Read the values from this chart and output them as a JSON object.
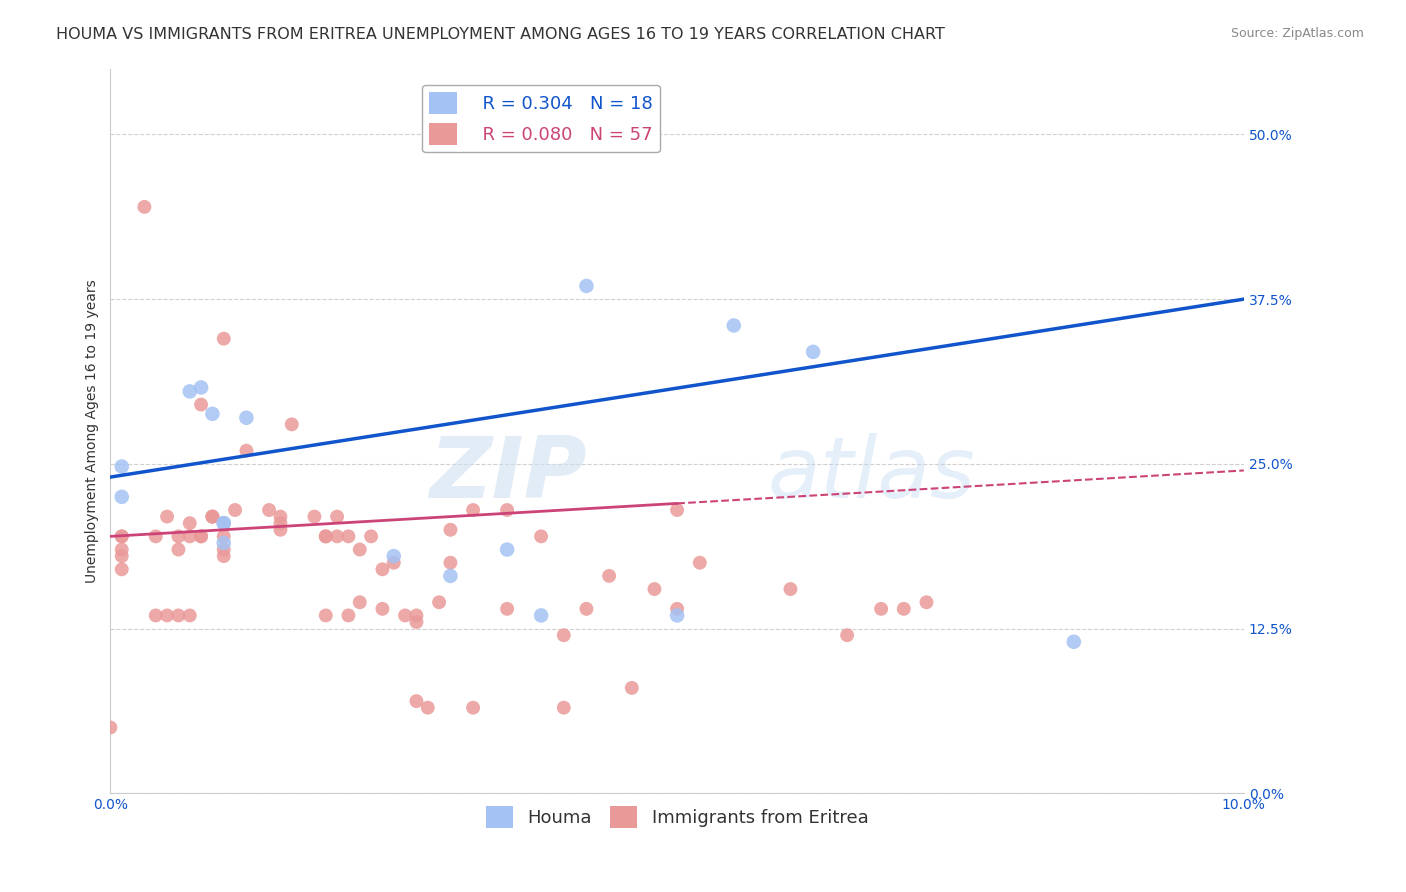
{
  "title": "HOUMA VS IMMIGRANTS FROM ERITREA UNEMPLOYMENT AMONG AGES 16 TO 19 YEARS CORRELATION CHART",
  "source": "Source: ZipAtlas.com",
  "ylabel": "Unemployment Among Ages 16 to 19 years",
  "xlim": [
    0.0,
    0.1
  ],
  "ylim": [
    0.0,
    0.55
  ],
  "ytick_labels": [
    "0.0%",
    "12.5%",
    "25.0%",
    "37.5%",
    "50.0%"
  ],
  "ytick_values": [
    0.0,
    0.125,
    0.25,
    0.375,
    0.5
  ],
  "xtick_values": [
    0.0,
    0.01,
    0.02,
    0.03,
    0.04,
    0.05,
    0.06,
    0.07,
    0.08,
    0.09,
    0.1
  ],
  "houma_R": 0.304,
  "houma_N": 18,
  "eritrea_R": 0.08,
  "eritrea_N": 57,
  "houma_color": "#a4c2f4",
  "eritrea_color": "#ea9999",
  "trend_houma_color": "#1155cc",
  "trend_eritrea_color": "#cc4477",
  "background_color": "#ffffff",
  "grid_color": "#d0d0d0",
  "houma_points_x": [
    0.001,
    0.001,
    0.007,
    0.008,
    0.009,
    0.01,
    0.01,
    0.01,
    0.012,
    0.025,
    0.03,
    0.035,
    0.038,
    0.042,
    0.05,
    0.055,
    0.062,
    0.085
  ],
  "houma_points_y": [
    0.248,
    0.225,
    0.305,
    0.308,
    0.288,
    0.205,
    0.205,
    0.19,
    0.285,
    0.18,
    0.165,
    0.185,
    0.135,
    0.385,
    0.135,
    0.355,
    0.335,
    0.115
  ],
  "eritrea_points_x": [
    0.001,
    0.001,
    0.001,
    0.001,
    0.001,
    0.004,
    0.005,
    0.006,
    0.006,
    0.007,
    0.007,
    0.008,
    0.008,
    0.009,
    0.009,
    0.009,
    0.01,
    0.01,
    0.01,
    0.01,
    0.011,
    0.012,
    0.014,
    0.015,
    0.015,
    0.016,
    0.018,
    0.019,
    0.019,
    0.02,
    0.02,
    0.021,
    0.022,
    0.022,
    0.023,
    0.024,
    0.025,
    0.026,
    0.027,
    0.027,
    0.029,
    0.03,
    0.03,
    0.032,
    0.035,
    0.038,
    0.04,
    0.042,
    0.048,
    0.05,
    0.052,
    0.06,
    0.065,
    0.068,
    0.07,
    0.072,
    0.0
  ],
  "eritrea_points_y": [
    0.195,
    0.195,
    0.185,
    0.18,
    0.17,
    0.195,
    0.21,
    0.195,
    0.185,
    0.205,
    0.195,
    0.195,
    0.195,
    0.21,
    0.21,
    0.21,
    0.205,
    0.195,
    0.185,
    0.18,
    0.215,
    0.26,
    0.215,
    0.21,
    0.2,
    0.28,
    0.21,
    0.195,
    0.195,
    0.21,
    0.195,
    0.195,
    0.185,
    0.145,
    0.195,
    0.17,
    0.175,
    0.135,
    0.13,
    0.135,
    0.145,
    0.175,
    0.2,
    0.215,
    0.215,
    0.195,
    0.12,
    0.14,
    0.155,
    0.14,
    0.175,
    0.155,
    0.12,
    0.14,
    0.14,
    0.145,
    0.05
  ],
  "eritrea_extra_x": [
    0.003,
    0.004,
    0.005,
    0.006,
    0.007,
    0.008,
    0.01,
    0.015,
    0.019,
    0.021,
    0.024,
    0.027,
    0.028,
    0.032,
    0.035,
    0.04,
    0.044,
    0.046,
    0.05
  ],
  "eritrea_extra_y": [
    0.445,
    0.135,
    0.135,
    0.135,
    0.135,
    0.295,
    0.345,
    0.205,
    0.135,
    0.135,
    0.14,
    0.07,
    0.065,
    0.065,
    0.14,
    0.065,
    0.165,
    0.08,
    0.215
  ],
  "watermark_zip": "ZIP",
  "watermark_atlas": "atlas",
  "title_fontsize": 11.5,
  "axis_label_fontsize": 10,
  "tick_fontsize": 10,
  "legend_fontsize": 13
}
